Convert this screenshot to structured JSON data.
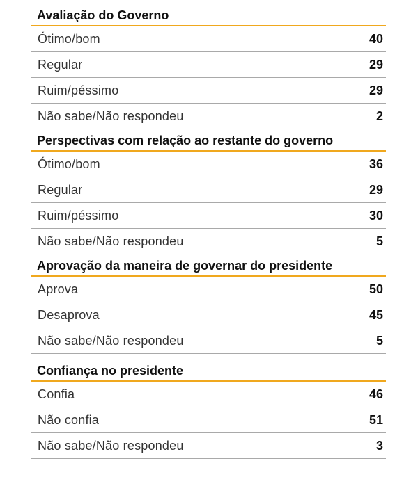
{
  "sections": [
    {
      "title": "Avaliação do Governo",
      "rows": [
        {
          "label": "Ótimo/bom",
          "value": "40"
        },
        {
          "label": "Regular",
          "value": "29"
        },
        {
          "label": "Ruim/péssimo",
          "value": "29"
        },
        {
          "label": "Não sabe/Não respondeu",
          "value": "2"
        }
      ]
    },
    {
      "title": "Perspectivas com relação ao restante do governo",
      "rows": [
        {
          "label": "Ótimo/bom",
          "value": "36"
        },
        {
          "label": "Regular",
          "value": "29"
        },
        {
          "label": "Ruim/péssimo",
          "value": "30"
        },
        {
          "label": "Não sabe/Não respondeu",
          "value": "5"
        }
      ]
    },
    {
      "title": "Aprovação da maneira de governar do presidente",
      "rows": [
        {
          "label": "Aprova",
          "value": "50"
        },
        {
          "label": "Desaprova",
          "value": "45"
        },
        {
          "label": "Não sabe/Não respondeu",
          "value": "5"
        }
      ]
    },
    {
      "title": "Confiança no presidente",
      "rows": [
        {
          "label": "Confia",
          "value": "46"
        },
        {
          "label": "Não confia",
          "value": "51"
        },
        {
          "label": "Não sabe/Não respondeu",
          "value": "3"
        }
      ]
    }
  ],
  "colors": {
    "accent": "#f0a81e",
    "divider": "#a9a9a9"
  }
}
